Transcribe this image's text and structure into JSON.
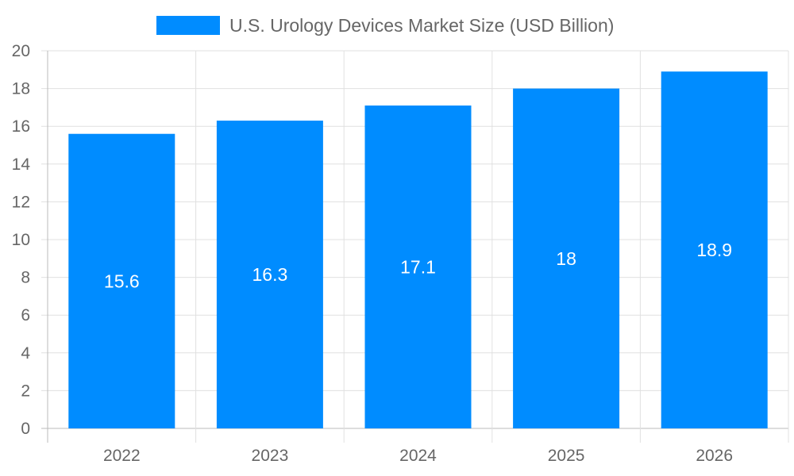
{
  "chart_data": {
    "type": "bar",
    "categories": [
      "2022",
      "2023",
      "2024",
      "2025",
      "2026"
    ],
    "series": [
      {
        "name": "U.S. Urology Devices Market Size (USD Billion)",
        "values": [
          15.6,
          16.3,
          17.1,
          18,
          18.9
        ],
        "color": "#008cff"
      }
    ],
    "data_labels": [
      "15.6",
      "16.3",
      "17.1",
      "18",
      "18.9"
    ],
    "ylim": [
      0,
      20
    ],
    "yticks": [
      "0",
      "2",
      "4",
      "6",
      "8",
      "10",
      "12",
      "14",
      "16",
      "18",
      "20"
    ],
    "grid": true,
    "legend": "top-center",
    "xlabel": "",
    "ylabel": ""
  }
}
